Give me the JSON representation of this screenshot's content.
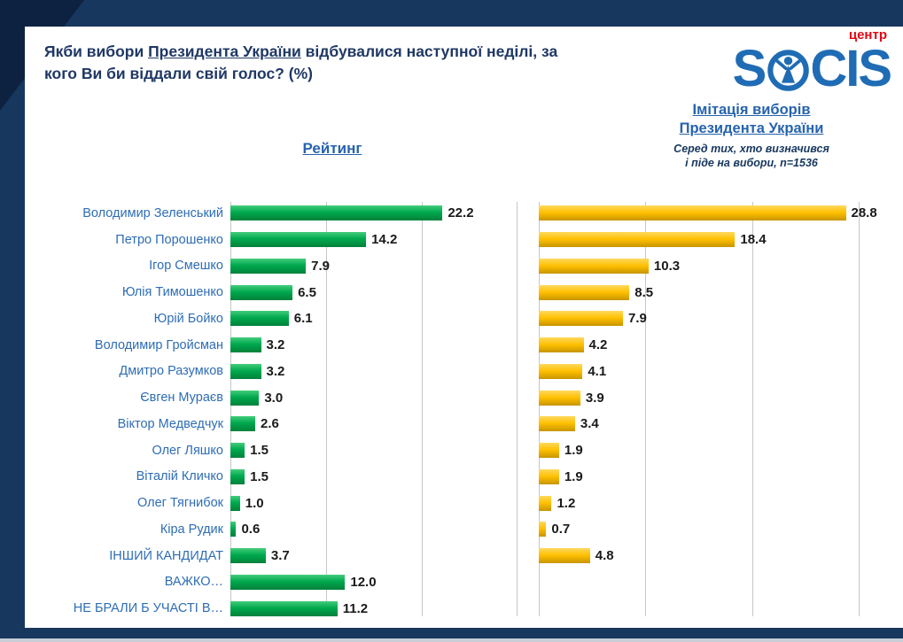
{
  "slide": {
    "question": {
      "pre": "Якби вибори ",
      "underlined": "Президента України",
      "post": " відбувалися наступної неділі, за",
      "line2": "кого Ви би віддали свій голос? (%)"
    },
    "logo": {
      "brand_pre": "S",
      "brand_post": "CIS",
      "sub": "центр"
    }
  },
  "chart_data": {
    "type": "bar",
    "orientation": "horizontal",
    "title": "Якби вибори Президента України відбувалися наступної неділі, за кого Ви би віддали свій голос? (%)",
    "xmax": 32,
    "gridlines": [
      0,
      10,
      20,
      30
    ],
    "grid": true,
    "categories": [
      "Володимир Зеленський",
      "Петро Порошенко",
      "Ігор Смешко",
      "Юлія Тимошенко",
      "Юрій Бойко",
      "Володимир Гройсман",
      "Дмитро Разумков",
      "Євген Мураєв",
      "Віктор Медведчук",
      "Олег Ляшко",
      "Віталій Кличко",
      "Олег Тягнибок",
      "Кіра Рудик",
      "ІНШИЙ КАНДИДАТ",
      "ВАЖКО…",
      "НЕ БРАЛИ Б УЧАСТІ В…"
    ],
    "series": [
      {
        "name": "Рейтинг",
        "color": "#00A94E",
        "values": [
          22.2,
          14.2,
          7.9,
          6.5,
          6.1,
          3.2,
          3.2,
          3.0,
          2.6,
          1.5,
          1.5,
          1.0,
          0.6,
          3.7,
          12.0,
          11.2
        ],
        "labels": [
          "22.2",
          "14.2",
          "7.9",
          "6.5",
          "6.1",
          "3.2",
          "3.2",
          "3.0",
          "2.6",
          "1.5",
          "1.5",
          "1.0",
          "0.6",
          "3.7",
          "12.0",
          "11.2"
        ]
      },
      {
        "name": "Імітація виборів Президента України",
        "title_line1": "Імітація виборів",
        "title_line2": "Президента України",
        "subtitle_line1": "Серед тих, хто визначився",
        "subtitle_line2": "і піде на вибори, n=1536",
        "color": "#FFC000",
        "values": [
          28.8,
          18.4,
          10.3,
          8.5,
          7.9,
          4.2,
          4.1,
          3.9,
          3.4,
          1.9,
          1.9,
          1.2,
          0.7,
          4.8,
          null,
          null
        ],
        "labels": [
          "28.8",
          "18.4",
          "10.3",
          "8.5",
          "7.9",
          "4.2",
          "4.1",
          "3.9",
          "3.4",
          "1.9",
          "1.9",
          "1.2",
          "0.7",
          "4.8",
          "",
          ""
        ]
      }
    ]
  }
}
